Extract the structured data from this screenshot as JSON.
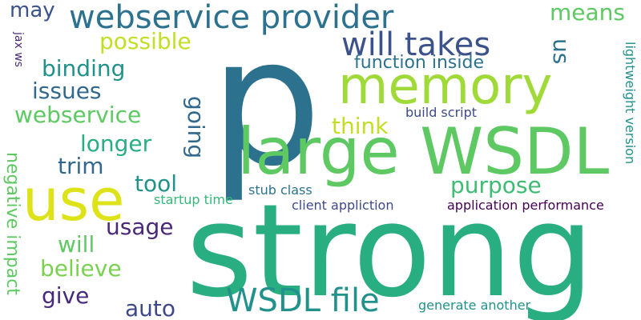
{
  "words": [
    {
      "text": "p",
      "color": "#2c728e"
    },
    {
      "text": "strong",
      "color": "#28ae80"
    },
    {
      "text": "large WSDL",
      "color": "#5ec962"
    },
    {
      "text": "memory",
      "color": "#a0da39"
    },
    {
      "text": "use",
      "color": "#dde318"
    },
    {
      "text": "webservice provider",
      "color": "#2c728e"
    },
    {
      "text": "will takes",
      "color": "#3b528b"
    },
    {
      "text": "WSDL file",
      "color": "#21918c"
    },
    {
      "text": "possible",
      "color": "#c2df23"
    },
    {
      "text": "may",
      "color": "#3b528b"
    },
    {
      "text": "means",
      "color": "#5ec962"
    },
    {
      "text": "binding",
      "color": "#21918c"
    },
    {
      "text": "function inside",
      "color": "#2c728e"
    },
    {
      "text": "us",
      "color": "#2c728e"
    },
    {
      "text": "issues",
      "color": "#31688e"
    },
    {
      "text": "webservice",
      "color": "#5ec962"
    },
    {
      "text": "think",
      "color": "#c2df23"
    },
    {
      "text": "longer",
      "color": "#28ae80"
    },
    {
      "text": "trim",
      "color": "#31688e"
    },
    {
      "text": "tool",
      "color": "#21918c"
    },
    {
      "text": "purpose",
      "color": "#3fbc73"
    },
    {
      "text": "usage",
      "color": "#482878"
    },
    {
      "text": "will",
      "color": "#5ec962"
    },
    {
      "text": "believe",
      "color": "#7ad151"
    },
    {
      "text": "give",
      "color": "#482878"
    },
    {
      "text": "auto",
      "color": "#3e4989"
    },
    {
      "text": "going",
      "color": "#31688e"
    },
    {
      "text": "negative impact",
      "color": "#5ec962"
    },
    {
      "text": "jax ws",
      "color": "#482878"
    },
    {
      "text": "lightweight version",
      "color": "#21918c"
    },
    {
      "text": "build script",
      "color": "#3e4989"
    },
    {
      "text": "startup time",
      "color": "#35b779"
    },
    {
      "text": "stub class",
      "color": "#2c728e"
    },
    {
      "text": "client appliction",
      "color": "#3e4989"
    },
    {
      "text": "application performance",
      "color": "#440154"
    },
    {
      "text": "generate another",
      "color": "#21918c"
    }
  ]
}
